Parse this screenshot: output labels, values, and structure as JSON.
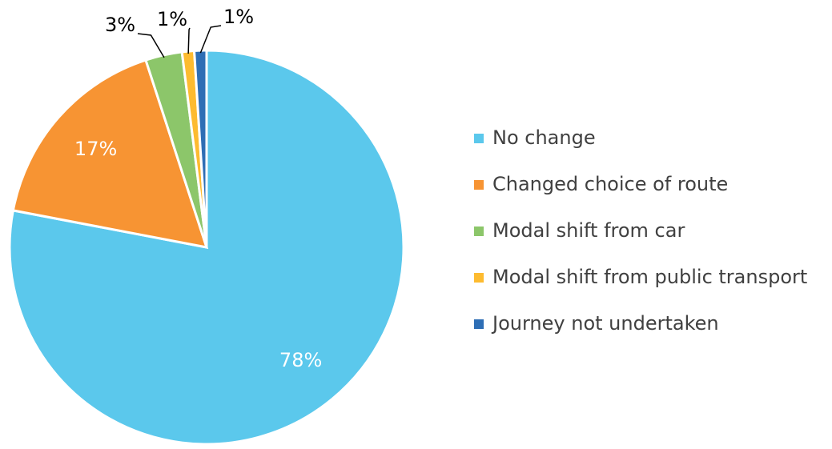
{
  "chart_data": {
    "type": "pie",
    "categories": [
      "No change",
      "Changed choice of route",
      "Modal shift from car",
      "Modal shift from public transport",
      "Journey not undertaken"
    ],
    "values": [
      78,
      17,
      3,
      1,
      1
    ],
    "value_labels": [
      "78%",
      "17%",
      "3%",
      "1%",
      "1%"
    ],
    "colors": [
      "#5bc8ec",
      "#f79433",
      "#8cc66a",
      "#fdbb30",
      "#2e6eb5"
    ],
    "legend": "right"
  }
}
